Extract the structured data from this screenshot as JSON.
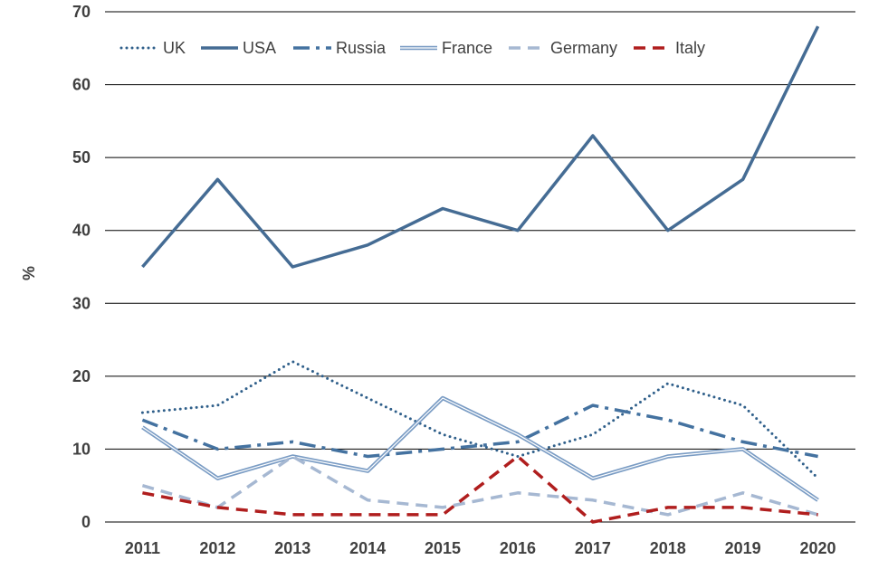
{
  "chart_data": {
    "type": "line",
    "title": "",
    "xlabel": "",
    "ylabel": "%",
    "ylim": [
      0,
      70
    ],
    "yticks": [
      0,
      10,
      20,
      30,
      40,
      50,
      60,
      70
    ],
    "grid": true,
    "legend_position": "top-left",
    "categories": [
      "2011",
      "2012",
      "2013",
      "2014",
      "2015",
      "2016",
      "2017",
      "2018",
      "2019",
      "2020"
    ],
    "series": [
      {
        "name": "UK",
        "key": "uk",
        "color": "#2F5F8A",
        "style": "dotted",
        "values": [
          15,
          16,
          22,
          17,
          12,
          9,
          12,
          19,
          16,
          6
        ]
      },
      {
        "name": "USA",
        "key": "usa",
        "color": "#456C94",
        "style": "solid",
        "values": [
          35,
          47,
          35,
          38,
          43,
          40,
          53,
          40,
          47,
          68
        ]
      },
      {
        "name": "Russia",
        "key": "russia",
        "color": "#4472A0",
        "style": "dashdot",
        "values": [
          14,
          10,
          11,
          9,
          10,
          11,
          16,
          14,
          11,
          9
        ]
      },
      {
        "name": "France",
        "key": "france",
        "color": "#7A9CC4",
        "style": "double",
        "values": [
          13,
          6,
          9,
          7,
          17,
          12,
          6,
          9,
          10,
          3
        ]
      },
      {
        "name": "Germany",
        "key": "germany",
        "color": "#A6B8D2",
        "style": "dashed",
        "values": [
          5,
          2,
          9,
          3,
          2,
          4,
          3,
          1,
          4,
          1
        ]
      },
      {
        "name": "Italy",
        "key": "italy",
        "color": "#B01E1E",
        "style": "dashed",
        "values": [
          4,
          2,
          1,
          1,
          1,
          9,
          0,
          2,
          2,
          1
        ]
      }
    ]
  }
}
